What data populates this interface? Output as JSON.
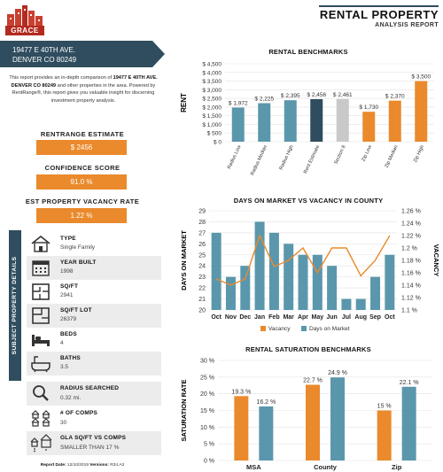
{
  "logo": {
    "text": "GRACE"
  },
  "header": {
    "title": "RENTAL PROPERTY",
    "subtitle": "ANALYSIS REPORT"
  },
  "address": {
    "line1": "19477 E 40TH AVE.",
    "line2": "DENVER CO 80249"
  },
  "intro": {
    "part1": "This report provides an in-depth comparison of ",
    "address_bold": "19477 E 40TH AVE. DENVER CO 80249",
    "part2": " and other properties in the area. Powered by RentRange®, this report gives you valuable insight for discerning investment property analysis."
  },
  "metrics": [
    {
      "label": "RENTRANGE ESTIMATE",
      "value": "$ 2456"
    },
    {
      "label": "CONFIDENCE SCORE",
      "value": "91.0 %"
    },
    {
      "label": "EST PROPERTY VACANCY RATE",
      "value": "1.22 %"
    }
  ],
  "details": {
    "side_label": "SUBJECT PROPERTY DETAILS",
    "rows": [
      {
        "label": "TYPE",
        "value": "Single Family",
        "icon": "house-icon"
      },
      {
        "label": "YEAR BUILT",
        "value": "1998",
        "icon": "calendar-icon"
      },
      {
        "label": "SQ/FT",
        "value": "2941",
        "icon": "floorplan-icon"
      },
      {
        "label": "SQ/FT LOT",
        "value": "26379",
        "icon": "lot-icon"
      },
      {
        "label": "BEDS",
        "value": "4",
        "icon": "bed-icon"
      },
      {
        "label": "BATHS",
        "value": "3.5",
        "icon": "bathtub-icon"
      }
    ]
  },
  "comps": [
    {
      "label": "RADIUS SEARCHED",
      "value": "0.32 mi.",
      "icon": "search-icon"
    },
    {
      "label": "# OF COMPS",
      "value": "30",
      "icon": "houses-icon"
    },
    {
      "label": "GLA SQ/FT VS COMPS",
      "value": "SMALLER THAN 17 %",
      "icon": "compare-icon"
    }
  ],
  "footer": {
    "date_label": "Report Date:",
    "date": "12/10/2019",
    "version_label": "Versions:",
    "version": "R34.A3"
  },
  "colors": {
    "teal": "#5a97ac",
    "navy": "#2f4d5e",
    "orange": "#ea8a2c",
    "gray": "#c9c9c9"
  },
  "chart_data": [
    {
      "type": "bar",
      "title": "RENTAL BENCHMARKS",
      "ylabel": "RENT",
      "categories": [
        "Radius Low",
        "Radius Median",
        "Radius High",
        "Rent Estimate",
        "Section 8",
        "Zip Low",
        "Zip Median",
        "Zip High"
      ],
      "values": [
        1972,
        2225,
        2395,
        2456,
        2461,
        1730,
        2370,
        3500
      ],
      "value_labels": [
        "$ 1,972",
        "$ 2,225",
        "$ 2,395",
        "$ 2,456",
        "$ 2,461",
        "$ 1,730",
        "$ 2,370",
        "$ 3,500"
      ],
      "bar_colors": [
        "#5a97ac",
        "#5a97ac",
        "#5a97ac",
        "#2f4d5e",
        "#c9c9c9",
        "#ea8a2c",
        "#ea8a2c",
        "#ea8a2c"
      ],
      "yticks": [
        "$ 0",
        "$ 500",
        "$ 1,000",
        "$ 1,500",
        "$ 2,000",
        "$ 2,500",
        "$ 3,000",
        "$ 3,500",
        "$ 4,000",
        "$ 4,500"
      ],
      "ylim": [
        0,
        4500
      ]
    },
    {
      "type": "bar+line",
      "title": "DAYS ON MARKET VS VACANCY IN COUNTY",
      "ylabel": "DAYS ON MARKET",
      "ylabel_right": "VACANCY",
      "categories": [
        "Oct",
        "Nov",
        "Dec",
        "Jan",
        "Feb",
        "Mar",
        "Apr",
        "May",
        "Jun",
        "Jul",
        "Aug",
        "Sep",
        "Oct"
      ],
      "bar_series": {
        "name": "Days on Market",
        "values": [
          27,
          23,
          24,
          28,
          27,
          26,
          25,
          25,
          24,
          21,
          21,
          23,
          25
        ]
      },
      "line_series": {
        "name": "Vacancy",
        "values": [
          1.15,
          1.14,
          1.15,
          1.22,
          1.17,
          1.18,
          1.2,
          1.16,
          1.2,
          1.2,
          1.155,
          1.18,
          1.22
        ]
      },
      "ylim": [
        20,
        29
      ],
      "yticks": [
        "20",
        "21",
        "22",
        "23",
        "24",
        "25",
        "26",
        "27",
        "28",
        "29"
      ],
      "ylim_right": [
        1.1,
        1.26
      ],
      "yticks_right": [
        "1.1 %",
        "1.12 %",
        "1.14 %",
        "1.16 %",
        "1.18 %",
        "1.2 %",
        "1.22 %",
        "1.24 %",
        "1.26 %"
      ],
      "legend": [
        "Vacancy",
        "Days on Market"
      ]
    },
    {
      "type": "bar",
      "title": "RENTAL SATURATION BENCHMARKS",
      "ylabel": "SATURATION RATE",
      "categories": [
        "MSA",
        "County",
        "Zip"
      ],
      "series": [
        {
          "values": [
            19.3,
            22.7,
            15
          ],
          "labels": [
            "19.3 %",
            "22.7 %",
            "15 %"
          ],
          "color": "#ea8a2c"
        },
        {
          "values": [
            16.2,
            24.9,
            22.1
          ],
          "labels": [
            "16.2 %",
            "24.9 %",
            "22.1 %"
          ],
          "color": "#5a97ac"
        }
      ],
      "ylim": [
        0,
        30
      ],
      "yticks": [
        "0 %",
        "5 %",
        "10 %",
        "15 %",
        "20 %",
        "25 %",
        "30 %"
      ]
    }
  ]
}
